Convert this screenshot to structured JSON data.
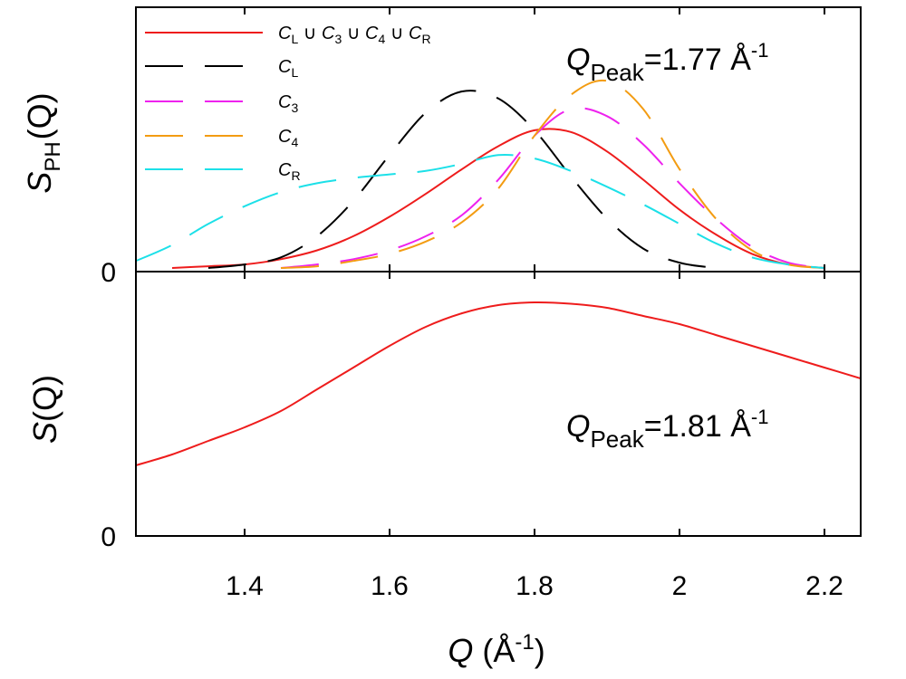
{
  "chart_data": [
    {
      "type": "line",
      "panel": "top",
      "ylabel": {
        "main": "S",
        "sub": "PH",
        "arg": "(Q)"
      },
      "xlim": [
        1.25,
        2.25
      ],
      "yticks": [
        "0"
      ],
      "grid": false,
      "legend_position": "top-left",
      "annotation": {
        "main": "Q",
        "sub": "Peak",
        "text": "=1.77 Å",
        "sup": "-1"
      },
      "series": [
        {
          "name": "C_L ∪ C_3 ∪ C_4 ∪ C_R",
          "style": "solid",
          "color": "#ee1c1c",
          "x": [
            1.3,
            1.35,
            1.4,
            1.45,
            1.5,
            1.55,
            1.6,
            1.65,
            1.7,
            1.75,
            1.8,
            1.85,
            1.9,
            1.95,
            2.0,
            2.05,
            2.1,
            2.15,
            2.2
          ],
          "y": [
            0.0,
            0.01,
            0.02,
            0.05,
            0.1,
            0.18,
            0.29,
            0.42,
            0.56,
            0.69,
            0.78,
            0.77,
            0.66,
            0.5,
            0.33,
            0.19,
            0.08,
            0.02,
            0.0
          ]
        },
        {
          "name": "C_L",
          "style": "dashed",
          "color": "#000000",
          "x": [
            1.35,
            1.4,
            1.45,
            1.5,
            1.55,
            1.6,
            1.65,
            1.7,
            1.75,
            1.8,
            1.85,
            1.9,
            1.95,
            2.0,
            2.05
          ],
          "y": [
            0.0,
            0.02,
            0.06,
            0.18,
            0.38,
            0.64,
            0.88,
            1.0,
            0.96,
            0.78,
            0.52,
            0.28,
            0.11,
            0.03,
            0.0
          ]
        },
        {
          "name": "C_3",
          "style": "dashed",
          "color": "#ee22ee",
          "x": [
            1.45,
            1.5,
            1.55,
            1.6,
            1.65,
            1.7,
            1.75,
            1.8,
            1.85,
            1.9,
            1.95,
            2.0,
            2.05,
            2.1,
            2.15,
            2.2
          ],
          "y": [
            0.0,
            0.02,
            0.05,
            0.1,
            0.18,
            0.3,
            0.5,
            0.75,
            0.9,
            0.86,
            0.7,
            0.48,
            0.28,
            0.12,
            0.03,
            0.0
          ]
        },
        {
          "name": "C_4",
          "style": "dashed",
          "color": "#f39c12",
          "x": [
            1.45,
            1.5,
            1.55,
            1.6,
            1.65,
            1.7,
            1.75,
            1.8,
            1.85,
            1.9,
            1.95,
            2.0,
            2.05,
            2.1,
            2.15,
            2.2
          ],
          "y": [
            0.0,
            0.01,
            0.04,
            0.08,
            0.15,
            0.26,
            0.45,
            0.75,
            0.98,
            1.06,
            0.9,
            0.56,
            0.28,
            0.1,
            0.02,
            0.0
          ]
        },
        {
          "name": "C_R",
          "style": "dashed",
          "color": "#1ce0e8",
          "x": [
            1.25,
            1.3,
            1.35,
            1.4,
            1.45,
            1.5,
            1.55,
            1.6,
            1.65,
            1.7,
            1.75,
            1.8,
            1.85,
            1.9,
            1.95,
            2.0,
            2.05,
            2.1,
            2.15,
            2.2
          ],
          "y": [
            0.04,
            0.13,
            0.25,
            0.35,
            0.43,
            0.48,
            0.51,
            0.53,
            0.55,
            0.59,
            0.64,
            0.62,
            0.55,
            0.46,
            0.36,
            0.25,
            0.14,
            0.06,
            0.02,
            0.0
          ]
        }
      ]
    },
    {
      "type": "line",
      "panel": "bottom",
      "ylabel": {
        "main": "S",
        "arg": "(Q)"
      },
      "xlabel": {
        "main": "Q",
        "text": " (Å",
        "sup": "-1",
        "close": ")"
      },
      "xlim": [
        1.25,
        2.25
      ],
      "xticks": [
        "1.4",
        "1.6",
        "1.8",
        "2",
        "2.2"
      ],
      "yticks": [
        "0"
      ],
      "grid": false,
      "annotation": {
        "main": "Q",
        "sub": "Peak",
        "text": "=1.81 Å",
        "sup": "-1"
      },
      "series": [
        {
          "style": "solid",
          "color": "#ee1c1c",
          "x": [
            1.25,
            1.3,
            1.35,
            1.4,
            1.45,
            1.5,
            1.55,
            1.6,
            1.65,
            1.7,
            1.75,
            1.8,
            1.85,
            1.9,
            1.95,
            2.0,
            2.05,
            2.1,
            2.15,
            2.2,
            2.25
          ],
          "y": [
            0.26,
            0.3,
            0.35,
            0.4,
            0.46,
            0.54,
            0.62,
            0.7,
            0.77,
            0.82,
            0.85,
            0.86,
            0.855,
            0.84,
            0.81,
            0.78,
            0.74,
            0.7,
            0.66,
            0.62,
            0.58
          ]
        }
      ]
    }
  ]
}
